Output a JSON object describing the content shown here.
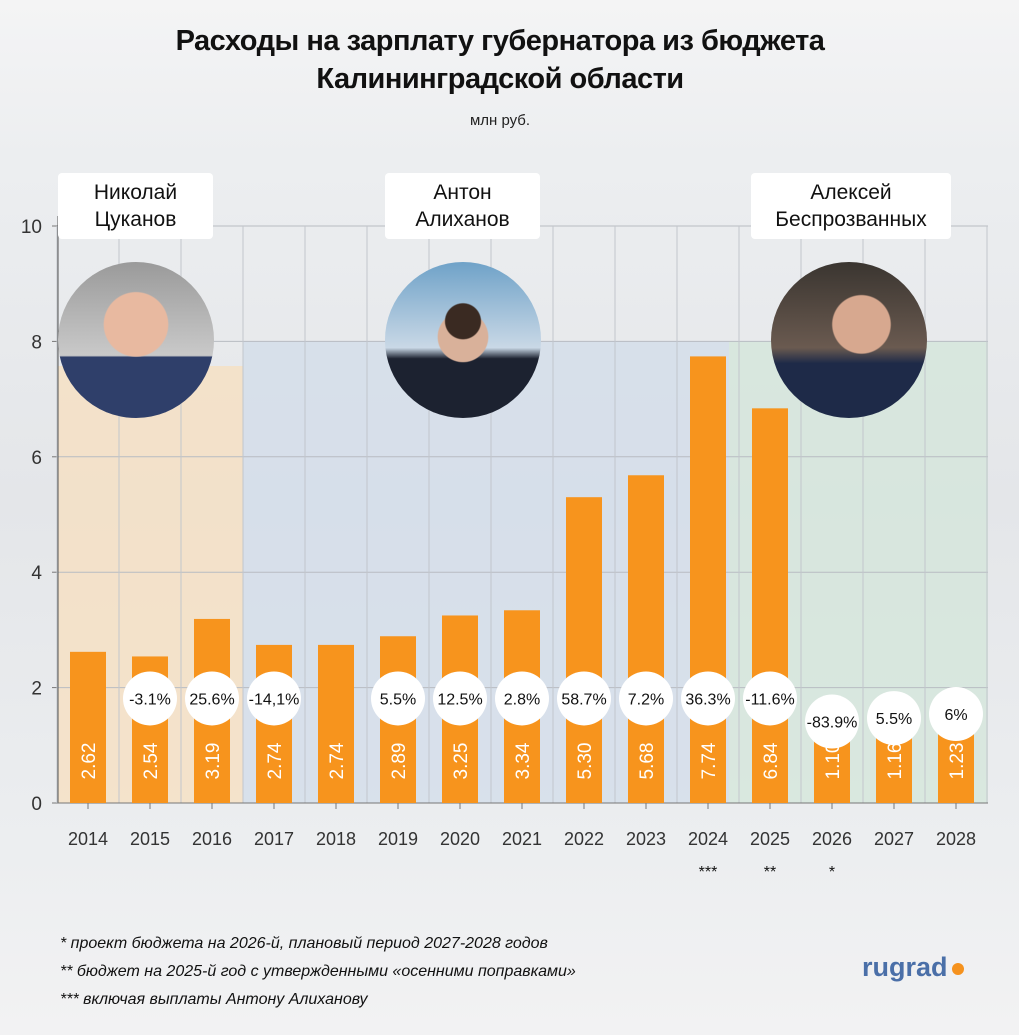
{
  "title_line1": "Расходы на зарплату губернатора из бюджета",
  "title_line2": "Калининградской области",
  "chart_data": {
    "type": "bar",
    "title": "Расходы на зарплату губернатора из бюджета Калининградской области",
    "subtitle": "млн руб.",
    "categories": [
      "2014",
      "2015",
      "2016",
      "2017",
      "2018",
      "2019",
      "2020",
      "2021",
      "2022",
      "2023",
      "2024",
      "2025",
      "2026",
      "2027",
      "2028"
    ],
    "category_marks": [
      "",
      "",
      "",
      "",
      "",
      "",
      "",
      "",
      "",
      "",
      "***",
      "**",
      "*",
      "",
      ""
    ],
    "values": [
      2.62,
      2.54,
      3.19,
      2.74,
      2.74,
      2.89,
      3.25,
      3.34,
      5.3,
      5.68,
      7.74,
      6.84,
      1.1,
      1.16,
      1.23
    ],
    "value_labels": [
      "2.62",
      "2.54",
      "3.19",
      "2.74",
      "2.74",
      "2.89",
      "3.25",
      "3.34",
      "5.30",
      "5.68",
      "7.74",
      "6.84",
      "1.10",
      "1.16",
      "1.23"
    ],
    "change_labels": [
      "",
      "-3.1%",
      "25.6%",
      "-14,1%",
      "",
      "5.5%",
      "12.5%",
      "2.8%",
      "58.7%",
      "7.2%",
      "36.3%",
      "-11.6%",
      "-83.9%",
      "5.5%",
      "6%"
    ],
    "ylim": [
      0,
      10
    ],
    "yticks": [
      "0",
      "2",
      "4",
      "6",
      "8",
      "10"
    ],
    "grid": true,
    "bar_color": "#f7941d",
    "periods": [
      {
        "name_line1": "Николай",
        "name_line2": "Цуканов",
        "from": "2014",
        "to": "2016",
        "color": "#f7dfbf"
      },
      {
        "name_line1": "Антон",
        "name_line2": "Алиханов",
        "from": "2017",
        "to": "2024",
        "color": "#d2dcea"
      },
      {
        "name_line1": "Алексей",
        "name_line2": "Беспрозванных",
        "from": "2024",
        "to": "2028",
        "color": "#d3e6da"
      }
    ]
  },
  "notes": [
    "* проект бюджета на 2026-й, плановый период 2027-2028 годов",
    "** бюджет на 2025-й год с утвержденными «осенними поправками»",
    "*** включая выплаты Антону Алиханову"
  ],
  "logo": "rugrad"
}
